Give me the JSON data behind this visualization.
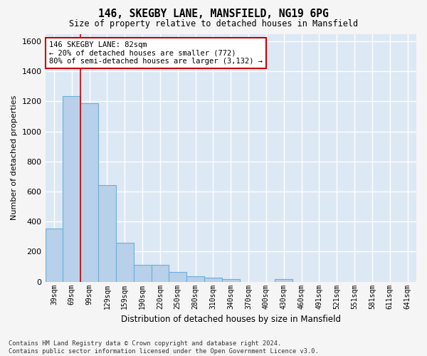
{
  "title_line1": "146, SKEGBY LANE, MANSFIELD, NG19 6PG",
  "title_line2": "Size of property relative to detached houses in Mansfield",
  "xlabel": "Distribution of detached houses by size in Mansfield",
  "ylabel": "Number of detached properties",
  "footnote": "Contains HM Land Registry data © Crown copyright and database right 2024.\nContains public sector information licensed under the Open Government Licence v3.0.",
  "categories": [
    "39sqm",
    "69sqm",
    "99sqm",
    "129sqm",
    "159sqm",
    "190sqm",
    "220sqm",
    "250sqm",
    "280sqm",
    "310sqm",
    "340sqm",
    "370sqm",
    "400sqm",
    "430sqm",
    "460sqm",
    "491sqm",
    "521sqm",
    "551sqm",
    "581sqm",
    "611sqm",
    "641sqm"
  ],
  "values": [
    355,
    1235,
    1190,
    645,
    260,
    112,
    112,
    65,
    35,
    25,
    18,
    0,
    0,
    15,
    0,
    0,
    0,
    0,
    0,
    0,
    0
  ],
  "bar_color": "#b8d0ea",
  "bar_edge_color": "#6baed6",
  "ylim": [
    0,
    1650
  ],
  "yticks": [
    0,
    200,
    400,
    600,
    800,
    1000,
    1200,
    1400,
    1600
  ],
  "property_line_x": 1.5,
  "property_line_color": "#cc0000",
  "annotation_text": "146 SKEGBY LANE: 82sqm\n← 20% of detached houses are smaller (772)\n80% of semi-detached houses are larger (3,132) →",
  "annotation_box_color": "#cc0000",
  "background_color": "#dde8f5",
  "grid_color": "#ffffff",
  "fig_bg_color": "#f5f5f5"
}
